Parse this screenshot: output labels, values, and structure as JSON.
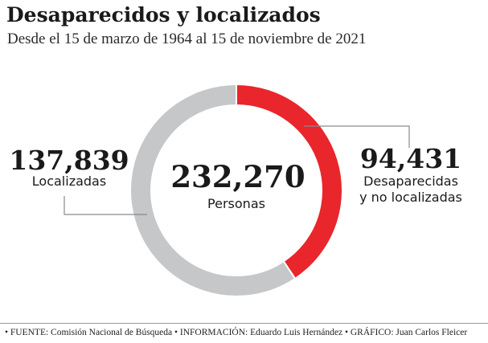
{
  "header": {
    "title": "Desaparecidos y localizados",
    "subtitle": "Desde el 15 de marzo de 1964 al 15 de noviembre de 2021"
  },
  "chart_data": {
    "type": "pie",
    "total_value": "232,270",
    "total_label": "Personas",
    "slices": [
      {
        "name": "Desaparecidas y no localizadas",
        "value": 94431,
        "value_label": "94,431",
        "label_lines": [
          "Desaparecidas",
          "y no localizadas"
        ],
        "color": "#e8262b"
      },
      {
        "name": "Localizadas",
        "value": 137839,
        "value_label": "137,839",
        "label_lines": [
          "Localizadas"
        ],
        "color": "#c6c7c9"
      }
    ]
  },
  "footer": {
    "text": "• FUENTE: Comisión Nacional de Búsqueda • INFORMACIÓN: Eduardo Luis Hernández • GRÁFICO:  Juan Carlos Fleicer"
  },
  "colors": {
    "missing": "#e8262b",
    "located": "#c6c7c9",
    "leader_line": "#8a8a8a",
    "text": "#1a1a1a"
  }
}
